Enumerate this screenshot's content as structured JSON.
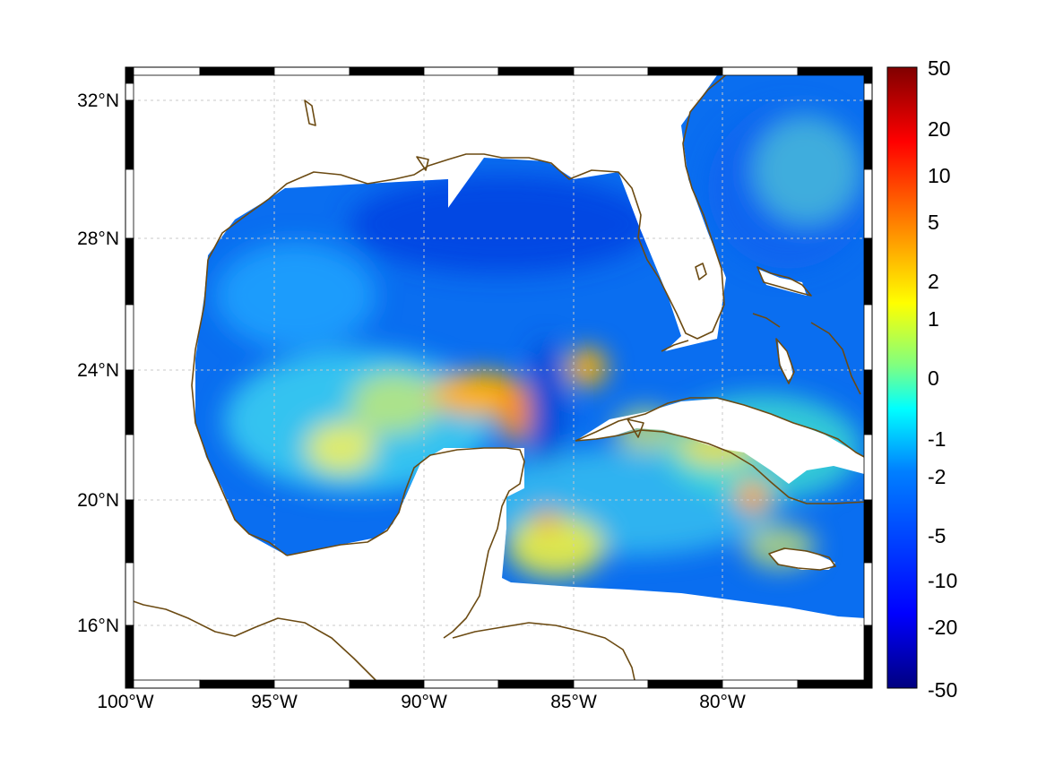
{
  "map": {
    "region": "Gulf of Mexico and western Caribbean",
    "projection_frame": "checkered",
    "x_ticks": [
      "100°W",
      "95°W",
      "90°W",
      "85°W",
      "80°W"
    ],
    "y_ticks": [
      "32°N",
      "28°N",
      "24°N",
      "20°N",
      "16°N"
    ],
    "grid": true,
    "colors": {
      "coastline": "#6b4a12",
      "land": "#ffffff",
      "frame": "#000000"
    }
  },
  "colorbar": {
    "colormap": "jet",
    "ticks": [
      "50",
      "20",
      "10",
      "5",
      "2",
      "1",
      "0",
      "-1",
      "-2",
      "-5",
      "-10",
      "-20",
      "-50"
    ],
    "colors": [
      "#800000",
      "#ff0000",
      "#ff8000",
      "#ffff00",
      "#80ff80",
      "#00ffff",
      "#0080ff",
      "#0000ff",
      "#000080"
    ]
  }
}
